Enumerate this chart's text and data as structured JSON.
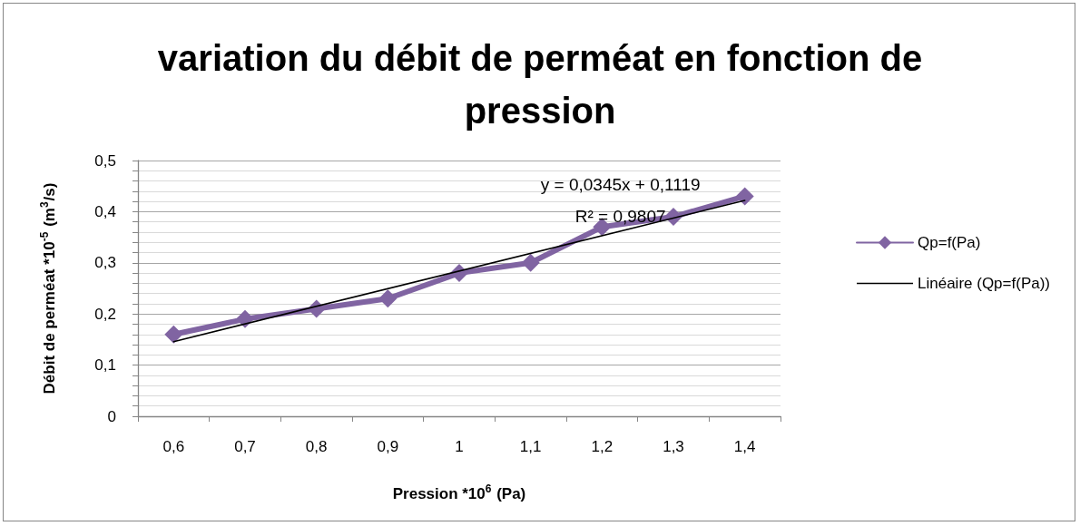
{
  "chart_data": {
    "type": "line",
    "title": "variation du débit de perméat en fonction de pression",
    "xlabel": "Pression *10$^{6}$ (Pa)",
    "ylabel": "Débit de perméat *10$^{-5}$ (m$^{3}$/s)",
    "categories": [
      "0,6",
      "0,7",
      "0,8",
      "0,9",
      "1",
      "1,1",
      "1,2",
      "1,3",
      "1,4"
    ],
    "series": [
      {
        "name": "Qp=f(Pa)",
        "color": "#8064a2",
        "values": [
          0.16,
          0.19,
          0.21,
          0.23,
          0.28,
          0.3,
          0.37,
          0.39,
          0.43
        ]
      },
      {
        "name": "Linéaire (Qp=f(Pa))",
        "color": "#000000",
        "x": [
          "0,6",
          "1,4"
        ],
        "values": [
          0.146,
          0.422
        ],
        "marker": "none"
      }
    ],
    "ylim": [
      0,
      0.5
    ],
    "yticks": [
      0,
      {
        "value": 0.02,
        "label": null
      },
      {
        "value": 0.04,
        "label": null
      },
      {
        "value": 0.06,
        "label": null
      },
      {
        "value": 0.08,
        "label": null
      },
      {
        "value": 0.1,
        "label": "0,1"
      },
      {
        "value": 0.12,
        "label": null
      },
      {
        "value": 0.14,
        "label": null
      },
      {
        "value": 0.16,
        "label": null
      },
      {
        "value": 0.18,
        "label": null
      },
      {
        "value": 0.2,
        "label": "0,2"
      },
      {
        "value": 0.22,
        "label": null
      },
      {
        "value": 0.24,
        "label": null
      },
      {
        "value": 0.26,
        "label": null
      },
      {
        "value": 0.28,
        "label": null
      },
      {
        "value": 0.3,
        "label": "0,3"
      },
      {
        "value": 0.32,
        "label": null
      },
      {
        "value": 0.34,
        "label": null
      },
      {
        "value": 0.36,
        "label": null
      },
      {
        "value": 0.38,
        "label": null
      },
      {
        "value": 0.4,
        "label": "0,4"
      },
      {
        "value": 0.42,
        "label": null
      },
      {
        "value": 0.44,
        "label": null
      },
      {
        "value": 0.46,
        "label": null
      },
      {
        "value": 0.48,
        "label": null
      },
      {
        "value": 0.5,
        "label": "0,5"
      }
    ],
    "annotations": [
      "y = 0,0345x + 0,1119",
      "R² = 0,9807"
    ],
    "grid": "y",
    "legend": "right",
    "marker": "diamond",
    "line_style": "solid"
  }
}
